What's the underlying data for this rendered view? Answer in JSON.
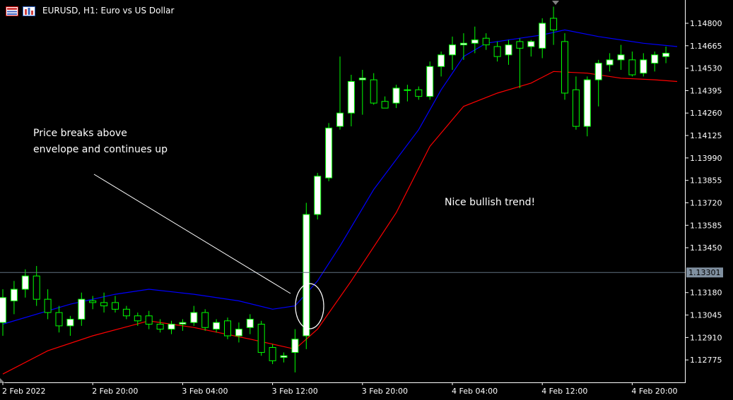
{
  "window": {
    "title": "EURUSD, H1:  Euro vs US Dollar",
    "icons": [
      "menu-icon",
      "chart-icon"
    ]
  },
  "annotations": {
    "breakout_note": "Price breaks above envelope and continues up",
    "trend_note": "Nice bullish trend!"
  },
  "colors": {
    "background": "#000000",
    "bull_candle_body": "#ffffff",
    "bear_candle_body": "#000000",
    "candle_wick": "#00ff00",
    "upper_envelope": "#0000ff",
    "lower_envelope": "#ff0000",
    "price_line": "#607080",
    "current_price_label_bg": "#8090a0"
  },
  "chart_data": {
    "type": "candlestick",
    "symbol": "EURUSD",
    "timeframe": "H1",
    "ylim": [
      1.1264,
      1.1494
    ],
    "y_ticks": [
      "1.14800",
      "1.14665",
      "1.14530",
      "1.14395",
      "1.14260",
      "1.14125",
      "1.13990",
      "1.13855",
      "1.13720",
      "1.13585",
      "1.13450",
      "1.13180",
      "1.13045",
      "1.12910",
      "1.12775"
    ],
    "current_price": "1.13301",
    "x_ticks": [
      "2 Feb 2022",
      "2 Feb 20:00",
      "3 Feb 04:00",
      "3 Feb 12:00",
      "3 Feb 20:00",
      "4 Feb 04:00",
      "4 Feb 12:00",
      "4 Feb 20:00"
    ],
    "x_tick_bars": [
      0,
      8,
      16,
      24,
      32,
      40,
      48,
      56
    ],
    "candles": [
      {
        "o": 1.13,
        "h": 1.132,
        "l": 1.1292,
        "c": 1.1315
      },
      {
        "o": 1.1313,
        "h": 1.1325,
        "l": 1.1305,
        "c": 1.132
      },
      {
        "o": 1.132,
        "h": 1.1332,
        "l": 1.1315,
        "c": 1.1328
      },
      {
        "o": 1.1328,
        "h": 1.1334,
        "l": 1.131,
        "c": 1.1314
      },
      {
        "o": 1.1314,
        "h": 1.132,
        "l": 1.1302,
        "c": 1.1306
      },
      {
        "o": 1.1306,
        "h": 1.131,
        "l": 1.1294,
        "c": 1.1298
      },
      {
        "o": 1.1298,
        "h": 1.1304,
        "l": 1.1292,
        "c": 1.1302
      },
      {
        "o": 1.1302,
        "h": 1.1318,
        "l": 1.1298,
        "c": 1.1314
      },
      {
        "o": 1.1313,
        "h": 1.1316,
        "l": 1.1308,
        "c": 1.1312
      },
      {
        "o": 1.1312,
        "h": 1.1318,
        "l": 1.1306,
        "c": 1.131
      },
      {
        "o": 1.1312,
        "h": 1.1316,
        "l": 1.1306,
        "c": 1.1308
      },
      {
        "o": 1.1308,
        "h": 1.131,
        "l": 1.1302,
        "c": 1.1304
      },
      {
        "o": 1.1304,
        "h": 1.1306,
        "l": 1.1298,
        "c": 1.1301
      },
      {
        "o": 1.1304,
        "h": 1.1307,
        "l": 1.1296,
        "c": 1.1299
      },
      {
        "o": 1.1299,
        "h": 1.1302,
        "l": 1.1294,
        "c": 1.1296
      },
      {
        "o": 1.1296,
        "h": 1.1301,
        "l": 1.1293,
        "c": 1.1299
      },
      {
        "o": 1.1299,
        "h": 1.1302,
        "l": 1.1295,
        "c": 1.13
      },
      {
        "o": 1.13,
        "h": 1.131,
        "l": 1.1298,
        "c": 1.1306
      },
      {
        "o": 1.1306,
        "h": 1.1308,
        "l": 1.1295,
        "c": 1.1297
      },
      {
        "o": 1.1296,
        "h": 1.1302,
        "l": 1.1294,
        "c": 1.13
      },
      {
        "o": 1.1301,
        "h": 1.1303,
        "l": 1.129,
        "c": 1.1292
      },
      {
        "o": 1.1292,
        "h": 1.13,
        "l": 1.1288,
        "c": 1.1296
      },
      {
        "o": 1.1297,
        "h": 1.1305,
        "l": 1.1293,
        "c": 1.1302
      },
      {
        "o": 1.1299,
        "h": 1.1301,
        "l": 1.128,
        "c": 1.1282
      },
      {
        "o": 1.1285,
        "h": 1.1287,
        "l": 1.1275,
        "c": 1.1277
      },
      {
        "o": 1.1279,
        "h": 1.1282,
        "l": 1.1276,
        "c": 1.128
      },
      {
        "o": 1.1282,
        "h": 1.1296,
        "l": 1.127,
        "c": 1.129
      },
      {
        "o": 1.1292,
        "h": 1.1372,
        "l": 1.1284,
        "c": 1.1365
      },
      {
        "o": 1.1365,
        "h": 1.139,
        "l": 1.1362,
        "c": 1.1388
      },
      {
        "o": 1.1387,
        "h": 1.142,
        "l": 1.1385,
        "c": 1.1417
      },
      {
        "o": 1.1418,
        "h": 1.146,
        "l": 1.1416,
        "c": 1.1426
      },
      {
        "o": 1.1426,
        "h": 1.1449,
        "l": 1.1418,
        "c": 1.1445
      },
      {
        "o": 1.1446,
        "h": 1.1452,
        "l": 1.1425,
        "c": 1.1447
      },
      {
        "o": 1.1446,
        "h": 1.145,
        "l": 1.1431,
        "c": 1.1432
      },
      {
        "o": 1.1433,
        "h": 1.1436,
        "l": 1.1429,
        "c": 1.1429
      },
      {
        "o": 1.1432,
        "h": 1.1443,
        "l": 1.1429,
        "c": 1.1441
      },
      {
        "o": 1.144,
        "h": 1.1443,
        "l": 1.1433,
        "c": 1.144
      },
      {
        "o": 1.144,
        "h": 1.1442,
        "l": 1.1434,
        "c": 1.1436
      },
      {
        "o": 1.1436,
        "h": 1.1457,
        "l": 1.1434,
        "c": 1.1454
      },
      {
        "o": 1.1454,
        "h": 1.1463,
        "l": 1.1448,
        "c": 1.1461
      },
      {
        "o": 1.1461,
        "h": 1.1472,
        "l": 1.1452,
        "c": 1.1467
      },
      {
        "o": 1.1467,
        "h": 1.1474,
        "l": 1.1458,
        "c": 1.1468
      },
      {
        "o": 1.1468,
        "h": 1.1478,
        "l": 1.1462,
        "c": 1.147
      },
      {
        "o": 1.1471,
        "h": 1.1474,
        "l": 1.1464,
        "c": 1.1467
      },
      {
        "o": 1.1466,
        "h": 1.1469,
        "l": 1.1457,
        "c": 1.146
      },
      {
        "o": 1.1461,
        "h": 1.147,
        "l": 1.1455,
        "c": 1.1467
      },
      {
        "o": 1.1469,
        "h": 1.1471,
        "l": 1.1441,
        "c": 1.1465
      },
      {
        "o": 1.1466,
        "h": 1.147,
        "l": 1.146,
        "c": 1.1469
      },
      {
        "o": 1.1465,
        "h": 1.1483,
        "l": 1.1459,
        "c": 1.148
      },
      {
        "o": 1.1483,
        "h": 1.149,
        "l": 1.1467,
        "c": 1.1476
      },
      {
        "o": 1.1469,
        "h": 1.1474,
        "l": 1.1434,
        "c": 1.1438
      },
      {
        "o": 1.144,
        "h": 1.1448,
        "l": 1.1416,
        "c": 1.1418
      },
      {
        "o": 1.1418,
        "h": 1.1448,
        "l": 1.1412,
        "c": 1.1446
      },
      {
        "o": 1.1446,
        "h": 1.1458,
        "l": 1.143,
        "c": 1.1456
      },
      {
        "o": 1.1455,
        "h": 1.1462,
        "l": 1.1451,
        "c": 1.1458
      },
      {
        "o": 1.1458,
        "h": 1.1467,
        "l": 1.1452,
        "c": 1.1461
      },
      {
        "o": 1.1458,
        "h": 1.1463,
        "l": 1.1448,
        "c": 1.1449
      },
      {
        "o": 1.145,
        "h": 1.1462,
        "l": 1.1448,
        "c": 1.1458
      },
      {
        "o": 1.1456,
        "h": 1.1463,
        "l": 1.1451,
        "c": 1.1461
      },
      {
        "o": 1.146,
        "h": 1.1466,
        "l": 1.1456,
        "c": 1.1462
      }
    ],
    "upper_envelope": [
      [
        0,
        1.1299
      ],
      [
        6,
        1.1311
      ],
      [
        10,
        1.1317
      ],
      [
        13,
        1.132
      ],
      [
        17,
        1.1317
      ],
      [
        21,
        1.1313
      ],
      [
        24,
        1.1308
      ],
      [
        26,
        1.131
      ],
      [
        28,
        1.1325
      ],
      [
        30,
        1.1346
      ],
      [
        33,
        1.138
      ],
      [
        37,
        1.1416
      ],
      [
        39,
        1.144
      ],
      [
        41,
        1.146
      ],
      [
        43,
        1.1468
      ],
      [
        46,
        1.1471
      ],
      [
        48,
        1.1473
      ],
      [
        50,
        1.1476
      ],
      [
        53,
        1.1472
      ],
      [
        57,
        1.1468
      ],
      [
        60,
        1.1466
      ]
    ],
    "lower_envelope": [
      [
        0,
        1.1269
      ],
      [
        4,
        1.1283
      ],
      [
        8,
        1.1292
      ],
      [
        13,
        1.1301
      ],
      [
        17,
        1.1297
      ],
      [
        22,
        1.129
      ],
      [
        26,
        1.1284
      ],
      [
        28,
        1.1296
      ],
      [
        31,
        1.1325
      ],
      [
        35,
        1.1366
      ],
      [
        38,
        1.1406
      ],
      [
        41,
        1.143
      ],
      [
        44,
        1.1438
      ],
      [
        47,
        1.1444
      ],
      [
        49,
        1.1451
      ],
      [
        52,
        1.145
      ],
      [
        55,
        1.1447
      ],
      [
        58,
        1.1446
      ],
      [
        60,
        1.1445
      ]
    ]
  }
}
